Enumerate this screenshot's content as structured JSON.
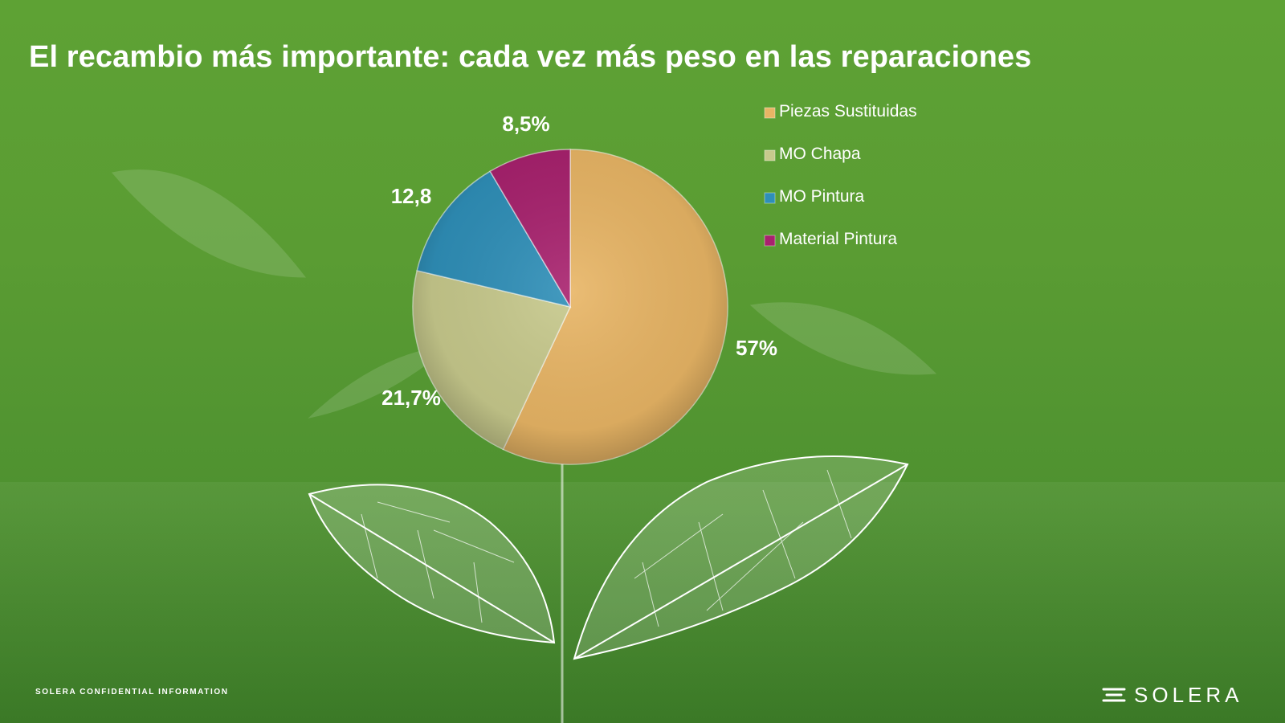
{
  "slide": {
    "title": "El recambio más importante: cada vez más peso en las reparaciones",
    "footer_note": "SOLERA CONFIDENTIAL INFORMATION",
    "logo_text": "SOLERA",
    "logo_icon": "solera-mark-icon"
  },
  "chart_data": {
    "type": "pie",
    "title": "",
    "slices": [
      {
        "name": "Piezas Sustituidas",
        "value": 57,
        "label": "57%",
        "color": "#e8b565"
      },
      {
        "name": "MO Chapa",
        "value": 21.7,
        "label": "21,7%",
        "color": "#c7c98c"
      },
      {
        "name": "MO Pintura",
        "value": 12.8,
        "label": "12,8",
        "color": "#2f8fb8"
      },
      {
        "name": "Material Pintura",
        "value": 8.5,
        "label": "8,5%",
        "color": "#a8226e"
      }
    ],
    "start_angle_deg": 0,
    "direction": "clockwise",
    "legend_position": "right",
    "legend": [
      "Piezas Sustituidas",
      "MO Chapa",
      "MO Pintura",
      "Material Pintura"
    ]
  },
  "colors": {
    "background": "#5a9c33",
    "text": "#ffffff"
  }
}
